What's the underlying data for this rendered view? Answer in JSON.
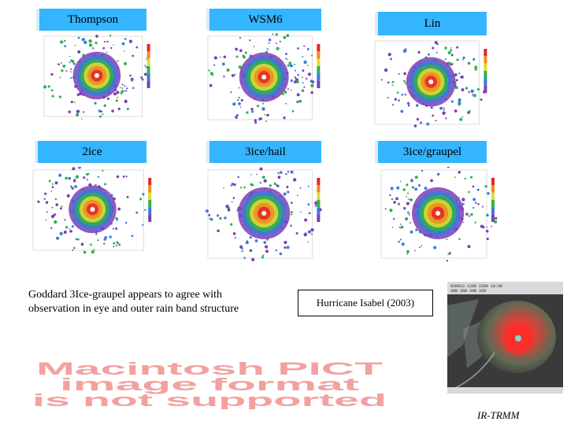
{
  "panels": [
    {
      "label": "Thompson"
    },
    {
      "label": "WSM6"
    },
    {
      "label": "Lin"
    },
    {
      "label": "2ice"
    },
    {
      "label": "3ice/hail"
    },
    {
      "label": "3ice/graupel"
    }
  ],
  "caption": "Goddard 3Ice-graupel appears to agree with observation in eye and outer rain band structure",
  "hurricane_title": "Hurricane Isabel (2003)",
  "pict_message": [
    "Macintosh PICT",
    "image format",
    "is not supported"
  ],
  "ir_label": "IR-TRMM",
  "colors": {
    "label_bg": "#33b5ff",
    "pict_text": "#f3a0a0"
  }
}
